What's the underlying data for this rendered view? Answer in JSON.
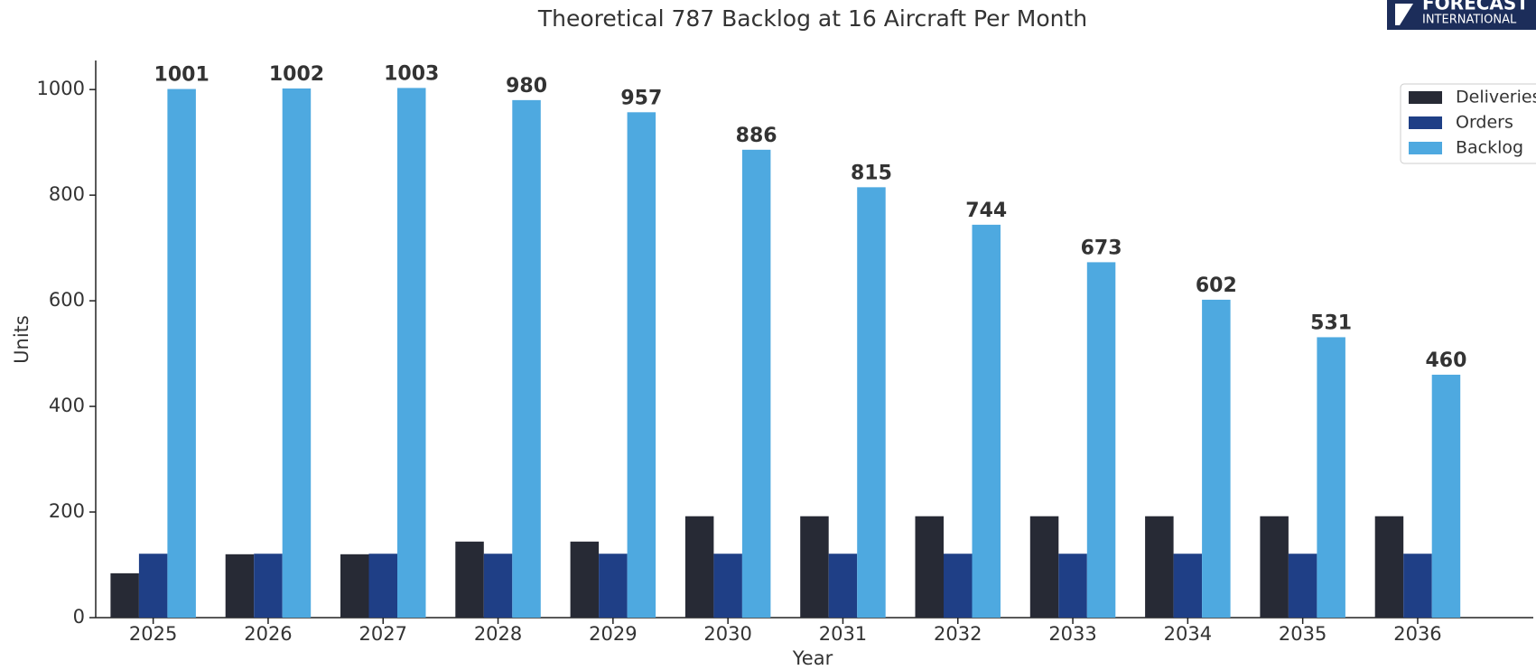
{
  "chart_data": {
    "type": "bar",
    "title": "Theoretical 787 Backlog at 16 Aircraft Per Month",
    "xlabel": "Year",
    "ylabel": "Units",
    "logo": [
      "FORECAST",
      "INTERNATIONAL"
    ],
    "categories": [
      "2025",
      "2026",
      "2027",
      "2028",
      "2029",
      "2030",
      "2031",
      "2032",
      "2033",
      "2034",
      "2035",
      "2036"
    ],
    "series": [
      {
        "name": "Deliveries",
        "color": "#272a35",
        "values": [
          84,
          120,
          120,
          144,
          144,
          192,
          192,
          192,
          192,
          192,
          192,
          192
        ]
      },
      {
        "name": "Orders",
        "color": "#1f3f86",
        "values": [
          121,
          121,
          121,
          121,
          121,
          121,
          121,
          121,
          121,
          121,
          121,
          121
        ]
      },
      {
        "name": "Backlog",
        "color": "#4ea9e0",
        "values": [
          1001,
          1002,
          1003,
          980,
          957,
          886,
          815,
          744,
          673,
          602,
          531,
          460
        ],
        "labels": true
      }
    ],
    "ylim": [
      0,
      1055
    ],
    "yticks": [
      0,
      200,
      400,
      600,
      800,
      1000
    ],
    "legend": "upper right",
    "grid": false
  }
}
